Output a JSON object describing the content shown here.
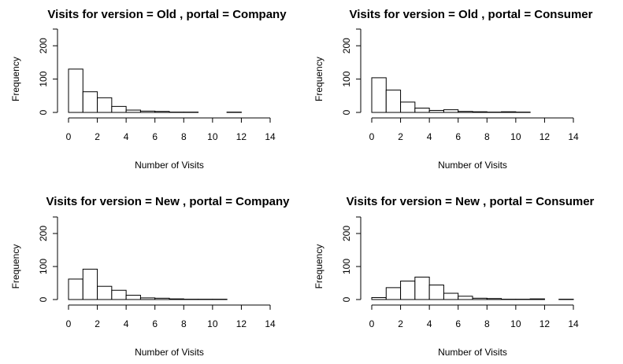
{
  "chart_data": [
    {
      "type": "bar",
      "title": "Visits for version = Old , portal = Company",
      "xlabel": "Number of Visits",
      "ylabel": "Frequency",
      "bin_edges": [
        0,
        1,
        2,
        3,
        4,
        5,
        6,
        7,
        8,
        9,
        10,
        11,
        12,
        13,
        14
      ],
      "values": [
        130,
        62,
        44,
        18,
        7,
        4,
        3,
        1,
        1,
        0,
        0,
        1,
        0,
        0
      ],
      "xticks": [
        0,
        2,
        4,
        6,
        8,
        10,
        12,
        14
      ],
      "yticks": [
        0,
        100,
        200
      ],
      "xlim": [
        0,
        14
      ],
      "ylim": [
        0,
        250
      ]
    },
    {
      "type": "bar",
      "title": "Visits for version = Old , portal = Consumer",
      "xlabel": "Number of Visits",
      "ylabel": "Frequency",
      "bin_edges": [
        0,
        1,
        2,
        3,
        4,
        5,
        6,
        7,
        8,
        9,
        10,
        11,
        12,
        13,
        14
      ],
      "values": [
        104,
        67,
        31,
        13,
        6,
        8,
        3,
        2,
        1,
        2,
        1,
        0,
        0,
        0
      ],
      "xticks": [
        0,
        2,
        4,
        6,
        8,
        10,
        12,
        14
      ],
      "yticks": [
        0,
        100,
        200
      ],
      "xlim": [
        0,
        14
      ],
      "ylim": [
        0,
        250
      ]
    },
    {
      "type": "bar",
      "title": "Visits for version = New , portal = Company",
      "xlabel": "Number of Visits",
      "ylabel": "Frequency",
      "bin_edges": [
        0,
        1,
        2,
        3,
        4,
        5,
        6,
        7,
        8,
        9,
        10,
        11,
        12,
        13,
        14
      ],
      "values": [
        62,
        92,
        40,
        28,
        13,
        5,
        4,
        2,
        1,
        1,
        1,
        0,
        0,
        0
      ],
      "xticks": [
        0,
        2,
        4,
        6,
        8,
        10,
        12,
        14
      ],
      "yticks": [
        0,
        100,
        200
      ],
      "xlim": [
        0,
        14
      ],
      "ylim": [
        0,
        250
      ]
    },
    {
      "type": "bar",
      "title": "Visits for version = New , portal = Consumer",
      "xlabel": "Number of Visits",
      "ylabel": "Frequency",
      "bin_edges": [
        0,
        1,
        2,
        3,
        4,
        5,
        6,
        7,
        8,
        9,
        10,
        11,
        12,
        13,
        14
      ],
      "values": [
        6,
        36,
        56,
        68,
        44,
        19,
        10,
        4,
        3,
        1,
        1,
        2,
        0,
        1
      ],
      "xticks": [
        0,
        2,
        4,
        6,
        8,
        10,
        12,
        14
      ],
      "yticks": [
        0,
        100,
        200
      ],
      "xlim": [
        0,
        14
      ],
      "ylim": [
        0,
        250
      ]
    }
  ]
}
